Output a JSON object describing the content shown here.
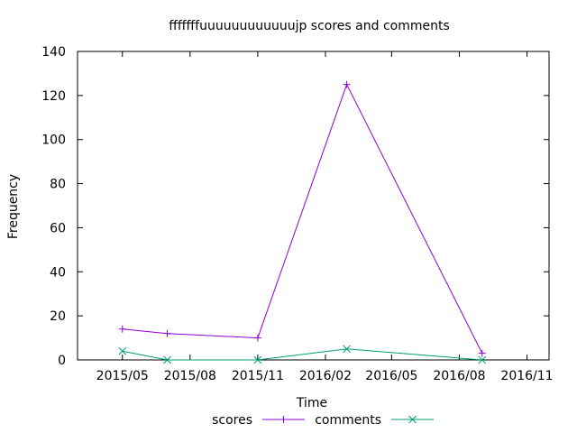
{
  "chart_data": {
    "type": "line",
    "title": "fffffffuuuuuuuuuuuujp scores and comments",
    "xlabel": "Time",
    "ylabel": "Frequency",
    "ylim": [
      0,
      140
    ],
    "yticks": [
      "0",
      "20",
      "40",
      "60",
      "80",
      "100",
      "120",
      "140"
    ],
    "xlim": [
      "2015-03-01",
      "2016-12-01"
    ],
    "xticks": [
      {
        "date": "2015-05-01",
        "label": "2015/05"
      },
      {
        "date": "2015-08-01",
        "label": "2015/08"
      },
      {
        "date": "2015-11-01",
        "label": "2015/11"
      },
      {
        "date": "2016-02-01",
        "label": "2016/02"
      },
      {
        "date": "2016-05-01",
        "label": "2016/05"
      },
      {
        "date": "2016-08-01",
        "label": "2016/08"
      },
      {
        "date": "2016-11-01",
        "label": "2016/11"
      }
    ],
    "legend_position": "bottom-center",
    "grid": false,
    "series": [
      {
        "name": "scores",
        "color": "#9400d3",
        "marker": "plus",
        "points": [
          {
            "x": "2015-05-01",
            "y": 14
          },
          {
            "x": "2015-07-01",
            "y": 12
          },
          {
            "x": "2015-11-01",
            "y": 10
          },
          {
            "x": "2016-03-01",
            "y": 125
          },
          {
            "x": "2016-09-01",
            "y": 3
          }
        ]
      },
      {
        "name": "comments",
        "color": "#009e73",
        "marker": "cross",
        "points": [
          {
            "x": "2015-05-01",
            "y": 4
          },
          {
            "x": "2015-07-01",
            "y": 0
          },
          {
            "x": "2015-11-01",
            "y": 0
          },
          {
            "x": "2016-03-01",
            "y": 5
          },
          {
            "x": "2016-09-01",
            "y": 0
          }
        ]
      }
    ]
  }
}
